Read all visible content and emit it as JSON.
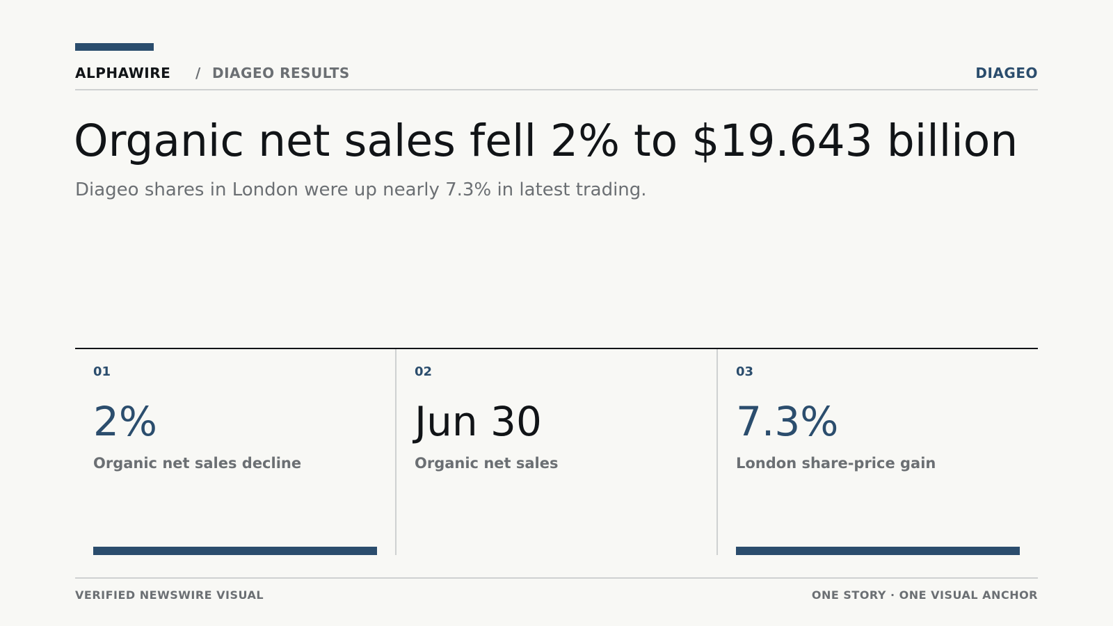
{
  "header": {
    "brand": "ALPHAWIRE",
    "separator": "/",
    "section": "DIAGEO RESULTS",
    "company": "DIAGEO"
  },
  "headline": "Organic net sales fell 2% to $19.643 billion",
  "subhead": "Diageo shares in London were up nearly 7.3% in latest trading.",
  "stats": [
    {
      "num": "01",
      "value": "2%",
      "label": "Organic net sales decline",
      "has_bar": true
    },
    {
      "num": "02",
      "value": "Jun 30",
      "label": "Organic net sales",
      "has_bar": false
    },
    {
      "num": "03",
      "value": "7.3%",
      "label": "London share-price gain",
      "has_bar": true
    }
  ],
  "footer": {
    "left": "VERIFIED NEWSWIRE VISUAL",
    "right": "ONE STORY · ONE VISUAL ANCHOR"
  },
  "colors": {
    "accent": "#2b4d6d",
    "background": "#f8f8f5",
    "text": "#111417",
    "muted": "#6b6f73",
    "rule": "#cfd1d1"
  }
}
